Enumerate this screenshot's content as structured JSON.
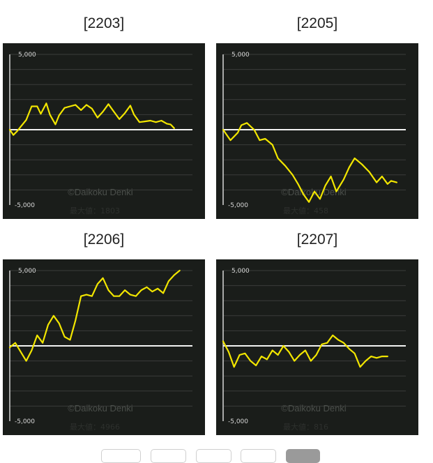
{
  "colors": {
    "background": "#1a1d1a",
    "grid": "#3a3d3a",
    "axis": "#d8d8d8",
    "zero_line": "#f2f2f2",
    "series": "#f2e600",
    "watermark": "#4a4e4a"
  },
  "chart_data": [
    {
      "type": "line",
      "title": "[2203]",
      "ytick_labels": [
        "5,000",
        "-5,000"
      ],
      "ylim": [
        -5000,
        5000
      ],
      "xlim": [
        0,
        1
      ],
      "grid": true,
      "watermark": "©Daikoku Denki",
      "max_label": "最大値：1803",
      "series": [
        {
          "x": [
            0.0,
            0.02,
            0.04,
            0.06,
            0.09,
            0.12,
            0.15,
            0.17,
            0.2,
            0.22,
            0.25,
            0.27,
            0.3,
            0.33,
            0.36,
            0.39,
            0.42,
            0.45,
            0.48,
            0.51,
            0.54,
            0.57,
            0.6,
            0.63,
            0.66,
            0.68,
            0.71,
            0.74,
            0.77,
            0.8,
            0.83,
            0.86,
            0.88,
            0.9
          ],
          "values": [
            0,
            -350,
            -100,
            200,
            650,
            1550,
            1550,
            1050,
            1750,
            1000,
            350,
            950,
            1450,
            1550,
            1650,
            1300,
            1650,
            1400,
            800,
            1200,
            1700,
            1200,
            700,
            1100,
            1600,
            1000,
            500,
            550,
            600,
            500,
            600,
            400,
            350,
            100
          ]
        }
      ]
    },
    {
      "type": "line",
      "title": "[2205]",
      "ytick_labels": [
        "5,000",
        "-5,000"
      ],
      "ylim": [
        -5000,
        5000
      ],
      "xlim": [
        0,
        1
      ],
      "grid": true,
      "watermark": "©Daikoku Denki",
      "max_label": "最大値：458",
      "series": [
        {
          "x": [
            0.0,
            0.04,
            0.08,
            0.1,
            0.13,
            0.17,
            0.2,
            0.23,
            0.27,
            0.3,
            0.34,
            0.38,
            0.41,
            0.44,
            0.47,
            0.5,
            0.53,
            0.56,
            0.59,
            0.62,
            0.66,
            0.69,
            0.72,
            0.76,
            0.8,
            0.84,
            0.87,
            0.9,
            0.92,
            0.95
          ],
          "values": [
            0,
            -700,
            -200,
            300,
            450,
            0,
            -700,
            -600,
            -1000,
            -1900,
            -2400,
            -3000,
            -3600,
            -4300,
            -4800,
            -4100,
            -4600,
            -3700,
            -3100,
            -4100,
            -3300,
            -2500,
            -1900,
            -2300,
            -2800,
            -3500,
            -3100,
            -3600,
            -3400,
            -3500
          ]
        }
      ]
    },
    {
      "type": "line",
      "title": "[2206]",
      "ytick_labels": [
        "5,000",
        "-5,000"
      ],
      "ylim": [
        -5000,
        5000
      ],
      "xlim": [
        0,
        1
      ],
      "grid": true,
      "watermark": "©Daikoku Denki",
      "max_label": "最大値：4966",
      "series": [
        {
          "x": [
            0.0,
            0.03,
            0.06,
            0.09,
            0.12,
            0.15,
            0.18,
            0.21,
            0.24,
            0.27,
            0.3,
            0.33,
            0.36,
            0.39,
            0.42,
            0.45,
            0.48,
            0.51,
            0.54,
            0.57,
            0.6,
            0.63,
            0.66,
            0.69,
            0.72,
            0.75,
            0.78,
            0.81,
            0.84,
            0.87,
            0.9,
            0.93
          ],
          "values": [
            -100,
            200,
            -400,
            -1000,
            -300,
            700,
            200,
            1400,
            2000,
            1500,
            600,
            400,
            1700,
            3300,
            3400,
            3300,
            4100,
            4500,
            3700,
            3300,
            3300,
            3700,
            3400,
            3300,
            3700,
            3900,
            3600,
            3800,
            3500,
            4300,
            4700,
            5000
          ]
        }
      ]
    },
    {
      "type": "line",
      "title": "[2207]",
      "ytick_labels": [
        "5,000",
        "-5,000"
      ],
      "ylim": [
        -5000,
        5000
      ],
      "xlim": [
        0,
        1
      ],
      "grid": true,
      "watermark": "©Daikoku Denki",
      "max_label": "最大値：816",
      "series": [
        {
          "x": [
            0.0,
            0.03,
            0.06,
            0.09,
            0.12,
            0.15,
            0.18,
            0.21,
            0.24,
            0.27,
            0.3,
            0.33,
            0.36,
            0.39,
            0.42,
            0.45,
            0.48,
            0.51,
            0.54,
            0.57,
            0.6,
            0.63,
            0.66,
            0.69,
            0.72,
            0.75,
            0.78,
            0.81,
            0.84,
            0.87,
            0.9
          ],
          "values": [
            300,
            -400,
            -1400,
            -600,
            -500,
            -1000,
            -1300,
            -700,
            -900,
            -300,
            -600,
            0,
            -400,
            -1000,
            -600,
            -300,
            -1000,
            -600,
            100,
            200,
            700,
            400,
            200,
            -200,
            -500,
            -1400,
            -1000,
            -700,
            -800,
            -700,
            -700
          ]
        }
      ]
    }
  ]
}
